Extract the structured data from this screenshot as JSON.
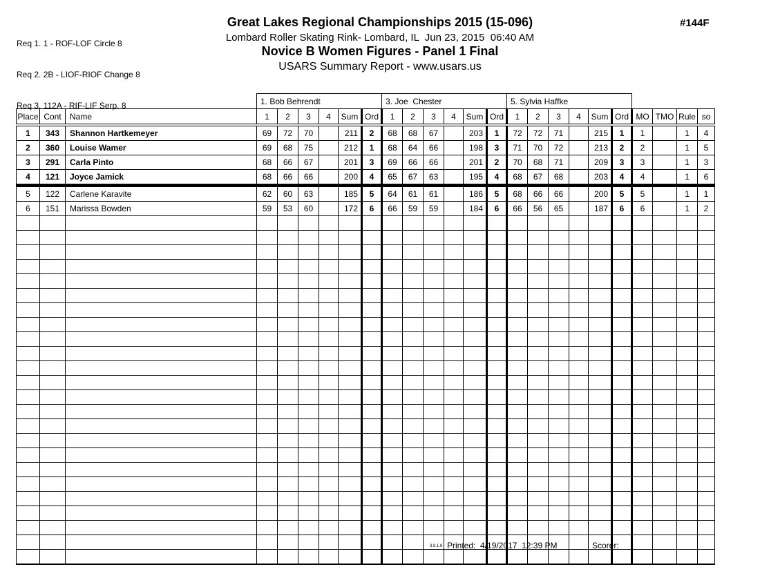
{
  "page": {
    "requirements": [
      "Req 1. 1 - ROF-LOF Circle 8",
      "Req 2. 2B - LIOF-RIOF Change 8",
      "Req 3. 112A - RIF-LIF Serp. 8"
    ],
    "title": "Great Lakes Regional Championships 2015 (15-096)",
    "venue_line": "Lombard Roller Skating Rink- Lombard, IL  Jun 23, 2015  06:40 AM",
    "category_title": "Novice B Women Figures - Panel 1 Final",
    "report_line": "USARS Summary Report - www.usars.us",
    "event_number": "#144F"
  },
  "table": {
    "judges": [
      "1. Bob Behrendt",
      "3. Joe  Chester",
      "5. Sylvia Haffke"
    ],
    "left_headers": [
      "Place",
      "Cont",
      "Name"
    ],
    "score_headers": [
      "1",
      "2",
      "3",
      "4",
      "Sum",
      "Ord"
    ],
    "right_headers": [
      "MO",
      "TMO",
      "Rule",
      "so"
    ],
    "cut_after_row": 4,
    "empty_row_count": 24,
    "rows": [
      {
        "place": "1",
        "cont": "343",
        "name": "Shannon Hartkemeyer",
        "bold": true,
        "judges": [
          {
            "s": [
              "69",
              "72",
              "70",
              ""
            ],
            "sum": "211",
            "ord": "2"
          },
          {
            "s": [
              "68",
              "68",
              "67",
              ""
            ],
            "sum": "203",
            "ord": "1"
          },
          {
            "s": [
              "72",
              "72",
              "71",
              ""
            ],
            "sum": "215",
            "ord": "1"
          }
        ],
        "mo": "1",
        "tmo": "",
        "rule": "1",
        "so": "4"
      },
      {
        "place": "2",
        "cont": "360",
        "name": "Louise Wamer",
        "bold": true,
        "judges": [
          {
            "s": [
              "69",
              "68",
              "75",
              ""
            ],
            "sum": "212",
            "ord": "1"
          },
          {
            "s": [
              "68",
              "64",
              "66",
              ""
            ],
            "sum": "198",
            "ord": "3"
          },
          {
            "s": [
              "71",
              "70",
              "72",
              ""
            ],
            "sum": "213",
            "ord": "2"
          }
        ],
        "mo": "2",
        "tmo": "",
        "rule": "1",
        "so": "5"
      },
      {
        "place": "3",
        "cont": "291",
        "name": "Carla Pinto",
        "bold": true,
        "judges": [
          {
            "s": [
              "68",
              "66",
              "67",
              ""
            ],
            "sum": "201",
            "ord": "3"
          },
          {
            "s": [
              "69",
              "66",
              "66",
              ""
            ],
            "sum": "201",
            "ord": "2"
          },
          {
            "s": [
              "70",
              "68",
              "71",
              ""
            ],
            "sum": "209",
            "ord": "3"
          }
        ],
        "mo": "3",
        "tmo": "",
        "rule": "1",
        "so": "3"
      },
      {
        "place": "4",
        "cont": "121",
        "name": "Joyce Jamick",
        "bold": true,
        "judges": [
          {
            "s": [
              "68",
              "66",
              "66",
              ""
            ],
            "sum": "200",
            "ord": "4"
          },
          {
            "s": [
              "65",
              "67",
              "63",
              ""
            ],
            "sum": "195",
            "ord": "4"
          },
          {
            "s": [
              "68",
              "67",
              "68",
              ""
            ],
            "sum": "203",
            "ord": "4"
          }
        ],
        "mo": "4",
        "tmo": "",
        "rule": "1",
        "so": "6"
      },
      {
        "place": "5",
        "cont": "122",
        "name": "Carlene Karavite",
        "bold": false,
        "judges": [
          {
            "s": [
              "62",
              "60",
              "63",
              ""
            ],
            "sum": "185",
            "ord": "5"
          },
          {
            "s": [
              "64",
              "61",
              "61",
              ""
            ],
            "sum": "186",
            "ord": "5"
          },
          {
            "s": [
              "68",
              "66",
              "66",
              ""
            ],
            "sum": "200",
            "ord": "5"
          }
        ],
        "mo": "5",
        "tmo": "",
        "rule": "1",
        "so": "1"
      },
      {
        "place": "6",
        "cont": "151",
        "name": "Marissa Bowden",
        "bold": false,
        "judges": [
          {
            "s": [
              "59",
              "53",
              "60",
              ""
            ],
            "sum": "172",
            "ord": "6"
          },
          {
            "s": [
              "66",
              "59",
              "59",
              ""
            ],
            "sum": "184",
            "ord": "6"
          },
          {
            "s": [
              "66",
              "56",
              "65",
              ""
            ],
            "sum": "187",
            "ord": "6"
          }
        ],
        "mo": "6",
        "tmo": "",
        "rule": "1",
        "so": "2"
      }
    ]
  },
  "footer": {
    "version": "3.8.1.8",
    "printed_label": "Printed:",
    "printed_value": "4/19/2017  12:39 PM",
    "scorer_label": "Scorer:"
  }
}
